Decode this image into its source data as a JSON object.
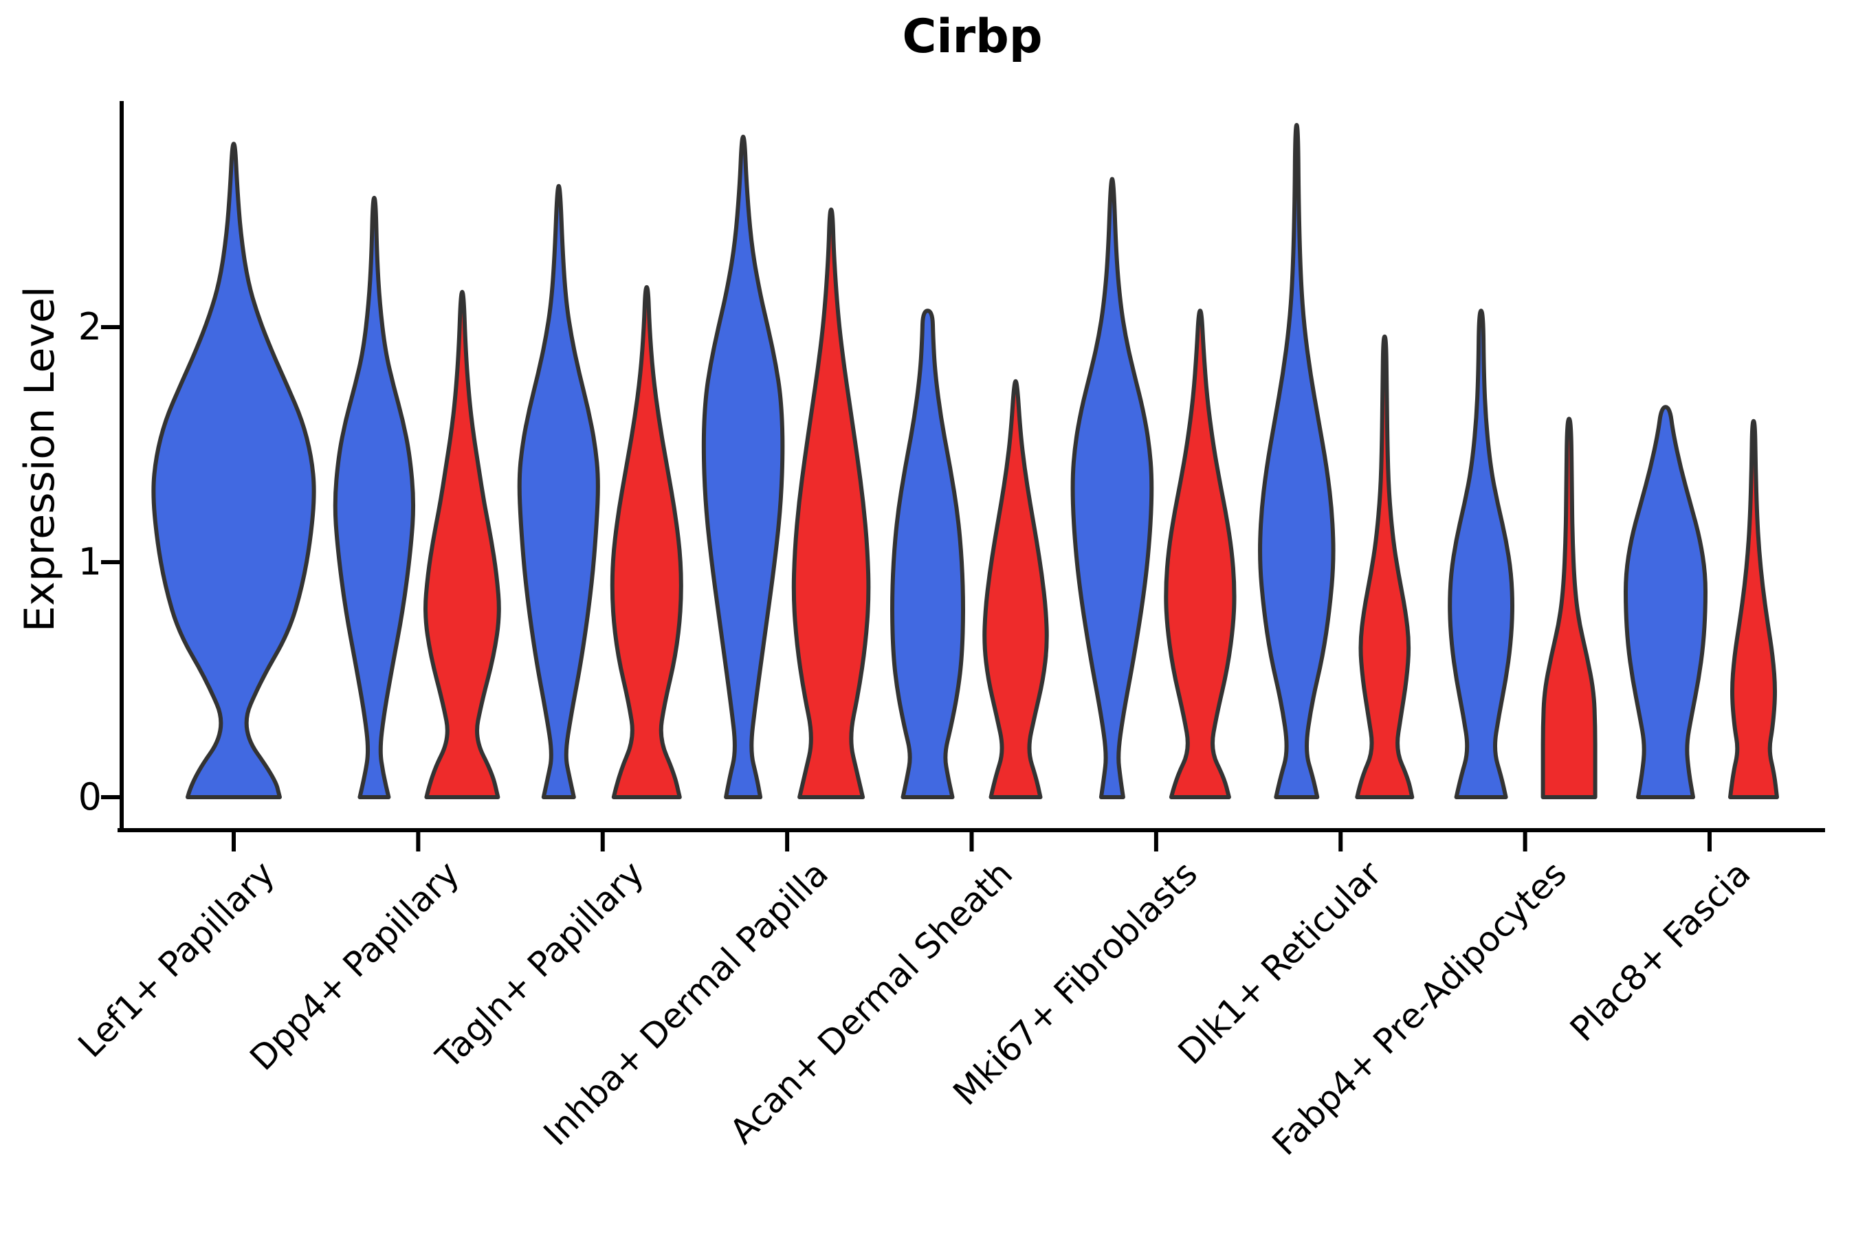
{
  "chart_data": {
    "type": "violin",
    "title": "Cirbp",
    "xlabel": "",
    "ylabel": "Expression Level",
    "ytick_labels": [
      "0",
      "1",
      "2"
    ],
    "yticks": [
      0,
      1,
      2
    ],
    "ylim": [
      0,
      3.0
    ],
    "grid": false,
    "legend_position": "none",
    "background_color": "#ffffff",
    "outline_color": "#333333",
    "axis_color": "#000000",
    "profile_units": [
      "expression_level",
      "halfwidth_px"
    ],
    "categories": [
      "Lef1+ Papillary",
      "Dpp4+ Papillary",
      "Tagln+ Papillary",
      "Inhba+ Dermal Papilla",
      "Acan+ Dermal Sheath",
      "Mki67+ Fibroblasts",
      "Dlk1+ Reticular",
      "Fabp4+ Pre-Adipocytes",
      "Plac8+ Fascia"
    ],
    "groups": [
      {
        "name": "blue",
        "color": "#4169e1"
      },
      {
        "name": "red",
        "color": "#ee2b2b"
      }
    ],
    "violins": [
      {
        "category": "Lef1+ Papillary",
        "group": "blue",
        "single": true,
        "max_expression": 2.78,
        "profile": [
          [
            0,
            67
          ],
          [
            0.08,
            60
          ],
          [
            0.29,
            9
          ],
          [
            0.5,
            40
          ],
          [
            0.7,
            80
          ],
          [
            0.9,
            100
          ],
          [
            1.1,
            112
          ],
          [
            1.3,
            118
          ],
          [
            1.45,
            113
          ],
          [
            1.6,
            100
          ],
          [
            1.75,
            78
          ],
          [
            1.9,
            55
          ],
          [
            2.05,
            35
          ],
          [
            2.2,
            20
          ],
          [
            2.4,
            10
          ],
          [
            2.6,
            5
          ],
          [
            2.78,
            2
          ]
        ]
      },
      {
        "category": "Dpp4+ Papillary",
        "group": "blue",
        "single": false,
        "max_expression": 2.55,
        "profile": [
          [
            0,
            21
          ],
          [
            0.1,
            13
          ],
          [
            0.2,
            8
          ],
          [
            0.35,
            14
          ],
          [
            0.55,
            26
          ],
          [
            0.8,
            42
          ],
          [
            1.05,
            53
          ],
          [
            1.25,
            58
          ],
          [
            1.45,
            52
          ],
          [
            1.6,
            42
          ],
          [
            1.75,
            28
          ],
          [
            1.9,
            16
          ],
          [
            2.1,
            8
          ],
          [
            2.3,
            4
          ],
          [
            2.55,
            2
          ]
        ]
      },
      {
        "category": "Dpp4+ Papillary",
        "group": "red",
        "single": false,
        "max_expression": 2.15,
        "profile": [
          [
            0,
            52
          ],
          [
            0.1,
            44
          ],
          [
            0.25,
            18
          ],
          [
            0.4,
            28
          ],
          [
            0.6,
            46
          ],
          [
            0.78,
            55
          ],
          [
            0.95,
            50
          ],
          [
            1.1,
            42
          ],
          [
            1.25,
            32
          ],
          [
            1.4,
            24
          ],
          [
            1.55,
            16
          ],
          [
            1.7,
            10
          ],
          [
            1.9,
            5
          ],
          [
            2.15,
            2
          ]
        ]
      },
      {
        "category": "Tagln+ Papillary",
        "group": "blue",
        "single": false,
        "max_expression": 2.6,
        "profile": [
          [
            0,
            22
          ],
          [
            0.08,
            16
          ],
          [
            0.18,
            9
          ],
          [
            0.35,
            18
          ],
          [
            0.6,
            34
          ],
          [
            0.9,
            48
          ],
          [
            1.15,
            55
          ],
          [
            1.35,
            58
          ],
          [
            1.5,
            53
          ],
          [
            1.65,
            43
          ],
          [
            1.8,
            30
          ],
          [
            1.95,
            19
          ],
          [
            2.1,
            11
          ],
          [
            2.3,
            6
          ],
          [
            2.6,
            2
          ]
        ]
      },
      {
        "category": "Tagln+ Papillary",
        "group": "red",
        "single": false,
        "max_expression": 2.17,
        "profile": [
          [
            0,
            48
          ],
          [
            0.1,
            40
          ],
          [
            0.25,
            18
          ],
          [
            0.4,
            26
          ],
          [
            0.6,
            42
          ],
          [
            0.8,
            50
          ],
          [
            1.0,
            50
          ],
          [
            1.2,
            42
          ],
          [
            1.4,
            30
          ],
          [
            1.6,
            18
          ],
          [
            1.8,
            9
          ],
          [
            2.0,
            4
          ],
          [
            2.17,
            2
          ]
        ]
      },
      {
        "category": "Inhba+ Dermal Papilla",
        "group": "blue",
        "single": false,
        "max_expression": 2.81,
        "profile": [
          [
            0,
            25
          ],
          [
            0.08,
            20
          ],
          [
            0.2,
            10
          ],
          [
            0.4,
            18
          ],
          [
            0.7,
            32
          ],
          [
            1.0,
            46
          ],
          [
            1.25,
            55
          ],
          [
            1.5,
            58
          ],
          [
            1.7,
            55
          ],
          [
            1.85,
            47
          ],
          [
            2.0,
            36
          ],
          [
            2.15,
            24
          ],
          [
            2.35,
            12
          ],
          [
            2.6,
            5
          ],
          [
            2.81,
            2
          ]
        ]
      },
      {
        "category": "Inhba+ Dermal Papilla",
        "group": "red",
        "single": false,
        "max_expression": 2.5,
        "profile": [
          [
            0,
            46
          ],
          [
            0.1,
            38
          ],
          [
            0.25,
            26
          ],
          [
            0.45,
            40
          ],
          [
            0.65,
            50
          ],
          [
            0.85,
            55
          ],
          [
            1.05,
            53
          ],
          [
            1.25,
            47
          ],
          [
            1.45,
            38
          ],
          [
            1.65,
            28
          ],
          [
            1.85,
            18
          ],
          [
            2.05,
            10
          ],
          [
            2.3,
            4
          ],
          [
            2.5,
            2
          ]
        ]
      },
      {
        "category": "Acan+ Dermal Sheath",
        "group": "blue",
        "single": false,
        "max_expression": 2.07,
        "profile": [
          [
            0,
            36
          ],
          [
            0.08,
            30
          ],
          [
            0.18,
            24
          ],
          [
            0.3,
            34
          ],
          [
            0.45,
            44
          ],
          [
            0.6,
            50
          ],
          [
            0.8,
            52
          ],
          [
            1.0,
            50
          ],
          [
            1.2,
            44
          ],
          [
            1.4,
            33
          ],
          [
            1.6,
            20
          ],
          [
            1.8,
            11
          ],
          [
            1.95,
            8
          ],
          [
            2.07,
            7
          ]
        ]
      },
      {
        "category": "Acan+ Dermal Sheath",
        "group": "red",
        "single": false,
        "max_expression": 1.77,
        "profile": [
          [
            0,
            36
          ],
          [
            0.08,
            30
          ],
          [
            0.2,
            17
          ],
          [
            0.35,
            28
          ],
          [
            0.5,
            40
          ],
          [
            0.65,
            46
          ],
          [
            0.8,
            44
          ],
          [
            0.95,
            38
          ],
          [
            1.1,
            30
          ],
          [
            1.25,
            21
          ],
          [
            1.4,
            13
          ],
          [
            1.55,
            7
          ],
          [
            1.77,
            2
          ]
        ]
      },
      {
        "category": "Mki67+ Fibroblasts",
        "group": "blue",
        "single": false,
        "max_expression": 2.63,
        "profile": [
          [
            0,
            16
          ],
          [
            0.08,
            12
          ],
          [
            0.18,
            8
          ],
          [
            0.35,
            16
          ],
          [
            0.6,
            32
          ],
          [
            0.9,
            48
          ],
          [
            1.15,
            56
          ],
          [
            1.35,
            58
          ],
          [
            1.5,
            54
          ],
          [
            1.65,
            45
          ],
          [
            1.8,
            32
          ],
          [
            1.95,
            20
          ],
          [
            2.1,
            12
          ],
          [
            2.3,
            6
          ],
          [
            2.63,
            2
          ]
        ]
      },
      {
        "category": "Mki67+ Fibroblasts",
        "group": "red",
        "single": false,
        "max_expression": 2.07,
        "profile": [
          [
            0,
            42
          ],
          [
            0.08,
            35
          ],
          [
            0.2,
            15
          ],
          [
            0.35,
            24
          ],
          [
            0.55,
            40
          ],
          [
            0.75,
            49
          ],
          [
            0.9,
            50
          ],
          [
            1.05,
            46
          ],
          [
            1.2,
            38
          ],
          [
            1.35,
            28
          ],
          [
            1.5,
            19
          ],
          [
            1.7,
            10
          ],
          [
            1.9,
            5
          ],
          [
            2.07,
            2
          ]
        ]
      },
      {
        "category": "Dlk1+ Reticular",
        "group": "blue",
        "single": false,
        "max_expression": 2.86,
        "profile": [
          [
            0,
            30
          ],
          [
            0.08,
            24
          ],
          [
            0.2,
            12
          ],
          [
            0.4,
            22
          ],
          [
            0.6,
            38
          ],
          [
            0.8,
            48
          ],
          [
            1.0,
            54
          ],
          [
            1.2,
            52
          ],
          [
            1.4,
            44
          ],
          [
            1.6,
            32
          ],
          [
            1.8,
            20
          ],
          [
            2.0,
            11
          ],
          [
            2.2,
            6
          ],
          [
            2.5,
            3
          ],
          [
            2.86,
            2
          ]
        ]
      },
      {
        "category": "Dlk1+ Reticular",
        "group": "red",
        "single": false,
        "max_expression": 1.96,
        "profile": [
          [
            0,
            40
          ],
          [
            0.08,
            34
          ],
          [
            0.2,
            16
          ],
          [
            0.35,
            24
          ],
          [
            0.5,
            32
          ],
          [
            0.65,
            36
          ],
          [
            0.8,
            30
          ],
          [
            0.95,
            20
          ],
          [
            1.1,
            12
          ],
          [
            1.3,
            6
          ],
          [
            1.5,
            4
          ],
          [
            1.75,
            3
          ],
          [
            1.96,
            2
          ]
        ]
      },
      {
        "category": "Fabp4+ Pre-Adipocytes",
        "group": "blue",
        "single": false,
        "max_expression": 2.07,
        "profile": [
          [
            0,
            36
          ],
          [
            0.08,
            30
          ],
          [
            0.2,
            18
          ],
          [
            0.35,
            26
          ],
          [
            0.5,
            36
          ],
          [
            0.65,
            43
          ],
          [
            0.8,
            46
          ],
          [
            0.95,
            44
          ],
          [
            1.1,
            36
          ],
          [
            1.25,
            24
          ],
          [
            1.4,
            14
          ],
          [
            1.6,
            7
          ],
          [
            1.8,
            4
          ],
          [
            2.07,
            3
          ]
        ]
      },
      {
        "category": "Fabp4+ Pre-Adipocytes",
        "group": "red",
        "single": false,
        "max_expression": 1.61,
        "profile": [
          [
            0,
            38
          ],
          [
            0.15,
            38
          ],
          [
            0.3,
            38
          ],
          [
            0.45,
            36
          ],
          [
            0.6,
            26
          ],
          [
            0.75,
            14
          ],
          [
            0.9,
            8
          ],
          [
            1.1,
            5
          ],
          [
            1.3,
            4
          ],
          [
            1.61,
            3
          ]
        ]
      },
      {
        "category": "Plac8+ Fascia",
        "group": "blue",
        "single": false,
        "max_expression": 1.66,
        "profile": [
          [
            0,
            40
          ],
          [
            0.1,
            34
          ],
          [
            0.22,
            30
          ],
          [
            0.35,
            38
          ],
          [
            0.5,
            48
          ],
          [
            0.65,
            55
          ],
          [
            0.8,
            58
          ],
          [
            0.95,
            58
          ],
          [
            1.1,
            50
          ],
          [
            1.25,
            36
          ],
          [
            1.4,
            22
          ],
          [
            1.55,
            11
          ],
          [
            1.66,
            6
          ]
        ]
      },
      {
        "category": "Plac8+ Fascia",
        "group": "red",
        "single": false,
        "max_expression": 1.6,
        "profile": [
          [
            0,
            34
          ],
          [
            0.1,
            30
          ],
          [
            0.2,
            22
          ],
          [
            0.3,
            28
          ],
          [
            0.45,
            32
          ],
          [
            0.6,
            28
          ],
          [
            0.75,
            20
          ],
          [
            0.9,
            13
          ],
          [
            1.05,
            8
          ],
          [
            1.2,
            5
          ],
          [
            1.4,
            3
          ],
          [
            1.6,
            2
          ]
        ]
      }
    ]
  }
}
